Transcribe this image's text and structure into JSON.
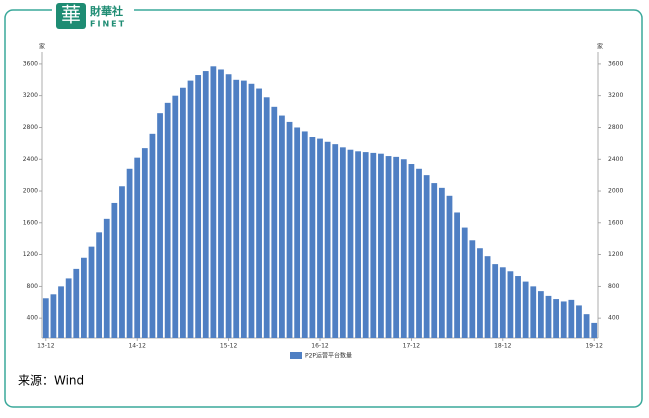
{
  "logo": {
    "mark": "華",
    "name": "財華社",
    "en": "FINET"
  },
  "source": "来源：Wind",
  "chart_data": {
    "type": "bar",
    "y_unit": "家",
    "y2_unit": "家",
    "categories": [
      "13-12",
      null,
      null,
      null,
      null,
      null,
      null,
      null,
      null,
      null,
      null,
      null,
      "14-12",
      null,
      null,
      null,
      null,
      null,
      null,
      null,
      null,
      null,
      null,
      null,
      "15-12",
      null,
      null,
      null,
      null,
      null,
      null,
      null,
      null,
      null,
      null,
      null,
      "16-12",
      null,
      null,
      null,
      null,
      null,
      null,
      null,
      null,
      null,
      null,
      null,
      "17-12",
      null,
      null,
      null,
      null,
      null,
      null,
      null,
      null,
      null,
      null,
      null,
      "18-12",
      null,
      null,
      null,
      null,
      null,
      null,
      null,
      null,
      null,
      null,
      null,
      "19-12"
    ],
    "series": [
      {
        "name": "P2P运营平台数量",
        "color": "#4f7fc3",
        "values": [
          650,
          700,
          800,
          900,
          1020,
          1160,
          1300,
          1480,
          1650,
          1850,
          2060,
          2280,
          2420,
          2540,
          2720,
          2980,
          3110,
          3200,
          3300,
          3390,
          3460,
          3510,
          3570,
          3530,
          3470,
          3400,
          3390,
          3350,
          3290,
          3180,
          3060,
          2950,
          2870,
          2800,
          2750,
          2680,
          2660,
          2620,
          2590,
          2550,
          2520,
          2500,
          2490,
          2480,
          2470,
          2440,
          2430,
          2400,
          2340,
          2280,
          2200,
          2100,
          2040,
          1940,
          1730,
          1540,
          1380,
          1280,
          1180,
          1080,
          1040,
          990,
          930,
          860,
          800,
          740,
          680,
          640,
          610,
          630,
          560,
          450,
          340
        ]
      }
    ],
    "ylim": [
      150,
      3750
    ],
    "yticks": [
      400,
      800,
      1200,
      1600,
      2000,
      2400,
      2800,
      3200,
      3600
    ],
    "y2lim": [
      150,
      3750
    ],
    "y2ticks": [
      400,
      800,
      1200,
      1600,
      2000,
      2400,
      2800,
      3200,
      3600
    ],
    "grid": false,
    "legend": "bottom"
  }
}
